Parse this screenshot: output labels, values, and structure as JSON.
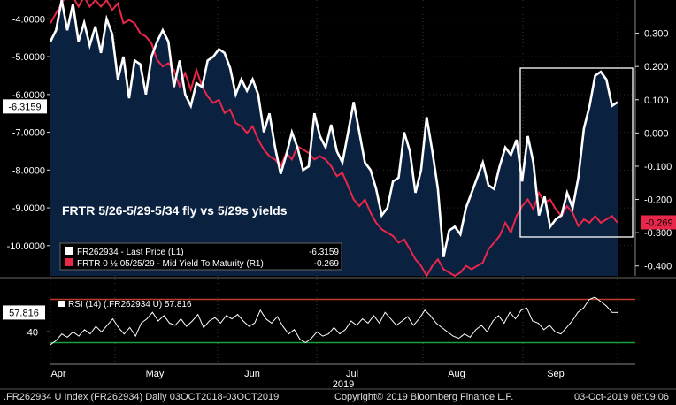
{
  "chart_data": [
    {
      "type": "line",
      "title": "FRTR 5/26-5/29-5/34 fly vs 5/29s yields",
      "x_range": [
        "2019-03-27",
        "2019-10-03"
      ],
      "month_labels": [
        "Apr",
        "May",
        "Jun",
        "Jul",
        "Aug",
        "Sep"
      ],
      "year_label": "2019",
      "left_axis": {
        "ticks": [
          -4.0,
          -5.0,
          -6.0,
          -7.0,
          -8.0,
          -9.0,
          -10.0
        ],
        "tick_labels": [
          "-4.0000",
          "-5.0000",
          "-6.0000",
          "-7.0000",
          "-8.0000",
          "-9.0000",
          "-10.0000"
        ],
        "ylim": [
          -10.8,
          -3.5
        ]
      },
      "right_axis": {
        "ticks": [
          0.3,
          0.2,
          0.1,
          0.0,
          -0.1,
          -0.2,
          -0.3,
          -0.4
        ],
        "tick_labels": [
          "0.300",
          "0.200",
          "0.100",
          "0.000",
          "-0.100",
          "-0.200",
          "-0.300",
          "-0.400"
        ],
        "ylim": [
          -0.43,
          0.4
        ]
      },
      "series": [
        {
          "name": "FR262934 - Last Price (L1)",
          "axis": "left",
          "color": "#ffffff",
          "fill": "#0b2140",
          "last_value": -6.3159,
          "last_label": "-6.3159",
          "values": [
            -4.6,
            -4.3,
            -3.5,
            -4.3,
            -3.6,
            -4.6,
            -4.1,
            -4.7,
            -4.2,
            -4.9,
            -4.0,
            -4.4,
            -5.6,
            -5.0,
            -6.1,
            -5.1,
            -5.2,
            -6.0,
            -5.0,
            -4.6,
            -4.3,
            -4.6,
            -5.8,
            -5.1,
            -6.0,
            -6.3,
            -5.7,
            -5.8,
            -5.1,
            -5.0,
            -4.8,
            -4.9,
            -5.3,
            -6.0,
            -5.6,
            -5.9,
            -5.6,
            -6.0,
            -7.0,
            -6.5,
            -7.4,
            -8.1,
            -7.6,
            -7.0,
            -7.4,
            -8.0,
            -7.9,
            -6.5,
            -7.1,
            -7.4,
            -6.8,
            -7.5,
            -7.8,
            -7.0,
            -6.2,
            -7.0,
            -7.8,
            -8.0,
            -8.5,
            -9.2,
            -9.0,
            -8.3,
            -8.2,
            -7.0,
            -7.5,
            -8.6,
            -8.0,
            -6.6,
            -7.5,
            -8.5,
            -10.3,
            -9.6,
            -9.5,
            -9.7,
            -9.0,
            -8.6,
            -8.2,
            -7.8,
            -8.4,
            -8.5,
            -7.9,
            -7.4,
            -7.6,
            -7.2,
            -8.3,
            -7.1,
            -7.8,
            -9.2,
            -8.7,
            -9.5,
            -9.3,
            -9.2,
            -8.6,
            -9.0,
            -8.2,
            -6.9,
            -6.3,
            -5.5,
            -5.4,
            -5.6,
            -6.3,
            -6.2
          ]
        },
        {
          "name": "FRTR 0 ½ 05/25/29 - Mid Yield To Maturity (R1)",
          "axis": "right",
          "color": "#e8274b",
          "last_value": -0.269,
          "last_label": "-0.269",
          "values": [
            0.33,
            0.36,
            0.39,
            0.42,
            0.41,
            0.38,
            0.41,
            0.38,
            0.4,
            0.38,
            0.4,
            0.37,
            0.39,
            0.33,
            0.34,
            0.33,
            0.3,
            0.29,
            0.27,
            0.22,
            0.2,
            0.21,
            0.19,
            0.14,
            0.18,
            0.13,
            0.19,
            0.14,
            0.11,
            0.09,
            0.1,
            0.06,
            0.07,
            0.03,
            0.02,
            0.0,
            0.02,
            -0.02,
            -0.05,
            -0.07,
            -0.08,
            -0.1,
            -0.06,
            -0.08,
            -0.04,
            -0.05,
            -0.06,
            -0.08,
            -0.07,
            -0.08,
            -0.1,
            -0.13,
            -0.12,
            -0.16,
            -0.2,
            -0.22,
            -0.2,
            -0.24,
            -0.27,
            -0.29,
            -0.3,
            -0.31,
            -0.33,
            -0.32,
            -0.35,
            -0.38,
            -0.4,
            -0.43,
            -0.4,
            -0.38,
            -0.41,
            -0.42,
            -0.43,
            -0.42,
            -0.4,
            -0.41,
            -0.4,
            -0.39,
            -0.35,
            -0.33,
            -0.31,
            -0.27,
            -0.3,
            -0.25,
            -0.22,
            -0.2,
            -0.23,
            -0.18,
            -0.21,
            -0.2,
            -0.23,
            -0.25,
            -0.22,
            -0.24,
            -0.28,
            -0.26,
            -0.27,
            -0.25,
            -0.27,
            -0.26,
            -0.25,
            -0.27
          ]
        }
      ],
      "legend": {
        "placement": "lower-left",
        "entries": [
          {
            "label": "FR262934 - Last Price (L1)",
            "value": "-6.3159",
            "color": "#ffffff"
          },
          {
            "label": "FRTR 0 ½ 05/25/29 - Mid Yield To Maturity (R1)",
            "value": "-0.269",
            "color": "#e8274b"
          }
        ]
      },
      "annotation": "highlight box over September period"
    },
    {
      "type": "line",
      "title": "",
      "series": [
        {
          "name": "RSI (14) (.FR262934 U)",
          "color": "#ffffff",
          "last_value": 57.816,
          "last_label": "57.816",
          "values": [
            28,
            32,
            38,
            35,
            40,
            36,
            42,
            38,
            45,
            40,
            46,
            52,
            44,
            38,
            44,
            36,
            48,
            52,
            58,
            50,
            55,
            48,
            46,
            52,
            45,
            50,
            56,
            44,
            50,
            53,
            48,
            55,
            52,
            56,
            50,
            45,
            48,
            60,
            52,
            48,
            54,
            45,
            38,
            42,
            33,
            30,
            34,
            40,
            36,
            38,
            44,
            38,
            42,
            50,
            46,
            52,
            48,
            55,
            48,
            58,
            52,
            46,
            50,
            54,
            46,
            52,
            60,
            55,
            48,
            44,
            40,
            36,
            34,
            38,
            35,
            42,
            46,
            40,
            50,
            55,
            48,
            58,
            52,
            60,
            62,
            50,
            48,
            42,
            46,
            40,
            38,
            44,
            50,
            58,
            62,
            70,
            72,
            68,
            64,
            58,
            57.816
          ]
        }
      ],
      "ticks": [
        40
      ],
      "tick_labels": [
        "40"
      ],
      "ylim": [
        10,
        90
      ],
      "upper_band": 70,
      "lower_band": 30,
      "upper_color": "#c0392b",
      "lower_color": "#1e9e3a",
      "legend": {
        "label": "RSI (14) (.FR262934 U) 57.816"
      }
    }
  ],
  "footer": {
    "left": ".FR262934 U Index (FR262934)   Daily 03OCT2018-03OCT2019",
    "center": "Copyright© 2019 Bloomberg Finance L.P.",
    "right": "03-Oct-2019 08:09:06"
  }
}
